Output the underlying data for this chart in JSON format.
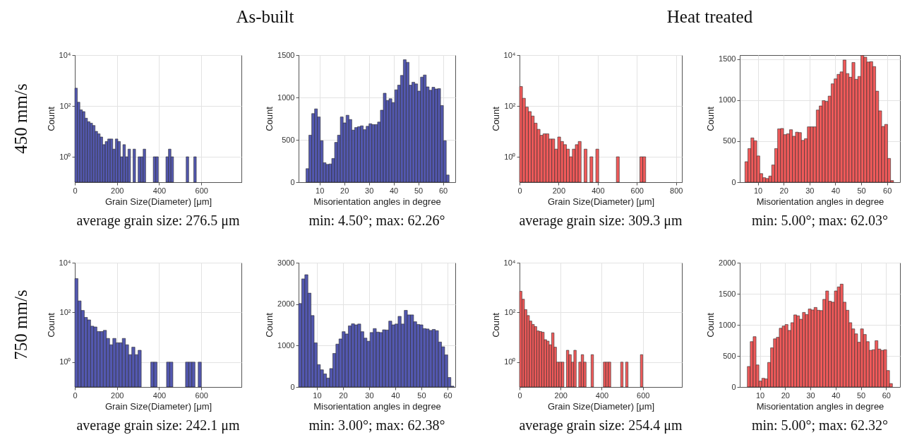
{
  "chart_data": [
    {
      "type": "histogram",
      "title": "As-built",
      "annotations": [
        "450 mm/s",
        "average grain size: 276.5 μm"
      ],
      "xlabel": "Grain Size(Diameter) [μm]",
      "ylabel": "Count",
      "color": "#5358b0",
      "log": "y",
      "grid": true,
      "xlim": [
        0,
        790
      ],
      "xticks": [
        0,
        200,
        400,
        600
      ],
      "ylim": [
        0.1,
        10000
      ],
      "yticks": [
        {
          "value": 1,
          "label": "10⁰"
        },
        {
          "value": 100,
          "label": "10²"
        },
        {
          "value": 10000,
          "label": "10⁴"
        }
      ],
      "bins": [
        0,
        12,
        24,
        36,
        48,
        60,
        72,
        84,
        96,
        108,
        120,
        132,
        144,
        156,
        168,
        180,
        192,
        204,
        216,
        228,
        240,
        252,
        264,
        276,
        288,
        300,
        312,
        324,
        336,
        372,
        384,
        396,
        432,
        444,
        456,
        468,
        528,
        540,
        564,
        576
      ],
      "values": [
        500,
        140,
        70,
        60,
        33,
        24,
        21,
        17,
        10,
        8,
        6,
        3,
        4,
        5,
        5,
        2,
        5,
        4,
        1,
        3,
        1,
        2,
        null,
        2,
        null,
        1,
        1,
        2,
        null,
        1,
        1,
        null,
        1,
        2,
        1,
        null,
        1,
        null,
        1
      ]
    },
    {
      "type": "histogram",
      "annotations": [
        "min: 4.50°; max: 62.26°"
      ],
      "xlabel": "Misorientation angles in degree",
      "ylabel": "Count",
      "color": "#5358b0",
      "grid": true,
      "xlim": [
        1.5,
        65
      ],
      "xticks": [
        10,
        20,
        30,
        40,
        50,
        60
      ],
      "ylim": [
        0,
        1500
      ],
      "yticks": [
        0,
        500,
        1000,
        1500
      ],
      "bins": [
        4.5,
        5.66,
        6.82,
        7.98,
        9.14,
        10.3,
        11.46,
        12.62,
        13.78,
        14.94,
        16.1,
        17.26,
        18.42,
        19.58,
        20.74,
        21.9,
        23.06,
        24.22,
        25.38,
        26.54,
        27.7,
        28.86,
        30.02,
        31.18,
        32.34,
        33.5,
        34.66,
        35.82,
        36.98,
        38.14,
        39.3,
        40.46,
        41.62,
        42.78,
        43.94,
        45.1,
        46.26,
        47.42,
        48.58,
        49.74,
        50.9,
        52.06,
        53.22,
        54.38,
        55.54,
        56.7,
        57.86,
        59.02,
        60.18,
        61.34,
        62.5
      ],
      "values": [
        160,
        555,
        810,
        865,
        770,
        490,
        230,
        210,
        215,
        280,
        470,
        555,
        770,
        700,
        790,
        740,
        615,
        645,
        655,
        665,
        620,
        660,
        690,
        680,
        680,
        710,
        850,
        1050,
        965,
        985,
        940,
        1090,
        1145,
        1260,
        1445,
        1415,
        1145,
        1180,
        1160,
        1075,
        1240,
        1265,
        1125,
        1085,
        1120,
        1100,
        1105,
        905,
        490,
        85
      ]
    },
    {
      "type": "histogram",
      "title": "Heat treated",
      "annotations": [
        "average grain size: 309.3 μm"
      ],
      "xlabel": "Grain Size(Diameter) [μm]",
      "ylabel": "Count",
      "color": "#f05a5a",
      "log": "y",
      "grid": true,
      "xlim": [
        0,
        830
      ],
      "xticks": [
        0,
        200,
        400,
        600,
        800
      ],
      "ylim": [
        0.1,
        10000
      ],
      "yticks": [
        {
          "value": 1,
          "label": "10⁰"
        },
        {
          "value": 100,
          "label": "10²"
        },
        {
          "value": 10000,
          "label": "10⁴"
        }
      ],
      "bins": [
        0,
        15,
        30,
        45,
        60,
        75,
        90,
        105,
        120,
        135,
        150,
        165,
        180,
        195,
        210,
        225,
        240,
        255,
        270,
        285,
        300,
        315,
        330,
        345,
        360,
        375,
        390,
        405,
        495,
        510,
        615,
        630,
        645
      ],
      "values": [
        580,
        200,
        90,
        60,
        40,
        21,
        12,
        7,
        8,
        8,
        5,
        5,
        2,
        6,
        4,
        3,
        2,
        1,
        2,
        3,
        4,
        null,
        2,
        null,
        1,
        null,
        2,
        null,
        1,
        null,
        1,
        1
      ]
    },
    {
      "type": "histogram",
      "annotations": [
        "min: 5.00°; max: 62.03°"
      ],
      "xlabel": "Misorientation angles in degree",
      "ylabel": "Count",
      "color": "#f05a5a",
      "grid": true,
      "xlim": [
        3,
        65
      ],
      "xticks": [
        10,
        20,
        30,
        40,
        50,
        60
      ],
      "ylim": [
        0,
        1550
      ],
      "yticks": [
        0,
        500,
        1000,
        1500
      ],
      "bins": [
        5,
        6.15,
        7.3,
        8.45,
        9.6,
        10.75,
        11.9,
        13.05,
        14.2,
        15.35,
        16.5,
        17.65,
        18.8,
        19.95,
        21.1,
        22.25,
        23.4,
        24.55,
        25.7,
        26.85,
        28,
        29.15,
        30.3,
        31.45,
        32.6,
        33.75,
        34.9,
        36.05,
        37.2,
        38.35,
        39.5,
        40.65,
        41.8,
        42.95,
        44.1,
        45.25,
        46.4,
        47.55,
        48.7,
        49.85,
        51,
        52.15,
        53.3,
        54.45,
        55.6,
        56.75,
        57.9,
        59.05,
        60.2,
        61.35,
        62.5
      ],
      "values": [
        250,
        410,
        540,
        505,
        320,
        105,
        55,
        45,
        75,
        210,
        410,
        650,
        655,
        580,
        590,
        640,
        560,
        610,
        605,
        510,
        530,
        675,
        675,
        675,
        880,
        930,
        995,
        985,
        1050,
        1200,
        1260,
        1315,
        1345,
        1490,
        1325,
        1280,
        1460,
        1255,
        1290,
        1545,
        1525,
        1465,
        1470,
        1410,
        1110,
        870,
        680,
        705,
        290,
        20
      ]
    },
    {
      "type": "histogram",
      "annotations": [
        "750 mm/s",
        "average grain size: 242.1 μm"
      ],
      "xlabel": "Grain Size(Diameter) [μm]",
      "ylabel": "Count",
      "color": "#5358b0",
      "log": "y",
      "grid": true,
      "xlim": [
        0,
        790
      ],
      "xticks": [
        0,
        200,
        400,
        600
      ],
      "ylim": [
        0.1,
        10000
      ],
      "yticks": [
        {
          "value": 1,
          "label": "10⁰"
        },
        {
          "value": 100,
          "label": "10²"
        },
        {
          "value": 10000,
          "label": "10⁴"
        }
      ],
      "bins": [
        0,
        15,
        30,
        45,
        60,
        75,
        90,
        105,
        120,
        135,
        150,
        165,
        180,
        195,
        210,
        225,
        240,
        255,
        270,
        285,
        300,
        315,
        360,
        375,
        390,
        435,
        450,
        465,
        525,
        540,
        555,
        570,
        585,
        600
      ],
      "values": [
        2300,
        290,
        120,
        63,
        50,
        28,
        26,
        17,
        17,
        19,
        9,
        5,
        9,
        6,
        6,
        9,
        5,
        2,
        4,
        2,
        3,
        null,
        1,
        1,
        null,
        1,
        1,
        null,
        1,
        1,
        1,
        null,
        1
      ]
    },
    {
      "type": "histogram",
      "annotations": [
        "min: 3.00°; max: 62.38°"
      ],
      "xlabel": "Misorientation angles in degree",
      "ylabel": "Count",
      "color": "#5358b0",
      "grid": true,
      "xlim": [
        3,
        63
      ],
      "xticks": [
        10,
        20,
        30,
        40,
        50,
        60
      ],
      "ylim": [
        0,
        3000
      ],
      "yticks": [
        0,
        1000,
        2000,
        3000
      ],
      "bins": [
        3,
        4.19,
        5.38,
        6.57,
        7.76,
        8.95,
        10.14,
        11.33,
        12.52,
        13.71,
        14.9,
        16.09,
        17.28,
        18.47,
        19.66,
        20.85,
        22.04,
        23.23,
        24.42,
        25.61,
        26.8,
        27.99,
        29.18,
        30.37,
        31.56,
        32.75,
        33.94,
        35.13,
        36.32,
        37.51,
        38.7,
        39.89,
        41.08,
        42.27,
        43.46,
        44.65,
        45.84,
        47.03,
        48.22,
        49.41,
        50.6,
        51.79,
        52.98,
        54.17,
        55.36,
        56.55,
        57.74,
        58.93,
        60.12,
        61.31,
        62.5
      ],
      "values": [
        2015,
        2610,
        2710,
        2265,
        1725,
        1065,
        540,
        415,
        315,
        215,
        445,
        810,
        1035,
        1160,
        1335,
        1280,
        1475,
        1525,
        1500,
        1520,
        1335,
        1180,
        1105,
        1315,
        1410,
        1325,
        1315,
        1380,
        1375,
        1590,
        1500,
        1520,
        1705,
        1520,
        1850,
        1740,
        1740,
        1575,
        1510,
        1500,
        1410,
        1400,
        1365,
        1390,
        1360,
        1085,
        970,
        775,
        230,
        20
      ]
    },
    {
      "type": "histogram",
      "annotations": [
        "average grain size: 254.4 μm"
      ],
      "xlabel": "Grain Size(Diameter) [μm]",
      "ylabel": "Count",
      "color": "#f05a5a",
      "log": "y",
      "grid": true,
      "xlim": [
        0,
        790
      ],
      "xticks": [
        0,
        200,
        400,
        600
      ],
      "ylim": [
        0.1,
        10000
      ],
      "yticks": [
        {
          "value": 1,
          "label": "10⁰"
        },
        {
          "value": 100,
          "label": "10²"
        },
        {
          "value": 10000,
          "label": "10⁴"
        }
      ],
      "bins": [
        0,
        12,
        24,
        36,
        48,
        60,
        72,
        84,
        96,
        108,
        120,
        132,
        144,
        156,
        168,
        180,
        192,
        204,
        216,
        228,
        240,
        252,
        264,
        276,
        288,
        300,
        312,
        324,
        348,
        360,
        408,
        420,
        432,
        444,
        492,
        504,
        516,
        528,
        588,
        600
      ],
      "values": [
        710,
        340,
        130,
        75,
        45,
        33,
        27,
        18,
        17,
        16,
        8,
        7,
        5,
        15,
        4,
        1,
        1,
        1,
        null,
        3,
        2,
        1,
        3,
        null,
        1,
        2,
        1,
        null,
        2,
        null,
        1,
        1,
        1,
        null,
        1,
        null,
        1,
        null,
        2
      ]
    },
    {
      "type": "histogram",
      "annotations": [
        "min: 5.00°; max: 62.32°"
      ],
      "xlabel": "Misorientation angles in degree",
      "ylabel": "Count",
      "color": "#f05a5a",
      "grid": true,
      "xlim": [
        2,
        65.5
      ],
      "xticks": [
        10,
        20,
        30,
        40,
        50,
        60
      ],
      "ylim": [
        0,
        2000
      ],
      "yticks": [
        0,
        500,
        1000,
        1500,
        2000
      ],
      "bins": [
        5,
        6.15,
        7.3,
        8.45,
        9.6,
        10.75,
        11.9,
        13.05,
        14.2,
        15.35,
        16.5,
        17.65,
        18.8,
        19.95,
        21.1,
        22.25,
        23.4,
        24.55,
        25.7,
        26.85,
        28,
        29.15,
        30.3,
        31.45,
        32.6,
        33.75,
        34.9,
        36.05,
        37.2,
        38.35,
        39.5,
        40.65,
        41.8,
        42.95,
        44.1,
        45.25,
        46.4,
        47.55,
        48.7,
        49.85,
        51,
        52.15,
        53.3,
        54.45,
        55.6,
        56.75,
        57.9,
        59.05,
        60.2,
        61.35,
        62.5
      ],
      "values": [
        330,
        730,
        810,
        355,
        95,
        140,
        130,
        395,
        630,
        775,
        800,
        945,
        980,
        1005,
        910,
        1035,
        1160,
        1145,
        1090,
        1200,
        1165,
        1255,
        1240,
        1280,
        1235,
        1230,
        1410,
        1545,
        1380,
        1365,
        1545,
        1610,
        1655,
        1365,
        1235,
        1035,
        935,
        855,
        720,
        935,
        845,
        730,
        590,
        600,
        745,
        610,
        590,
        600,
        265,
        55
      ]
    }
  ]
}
